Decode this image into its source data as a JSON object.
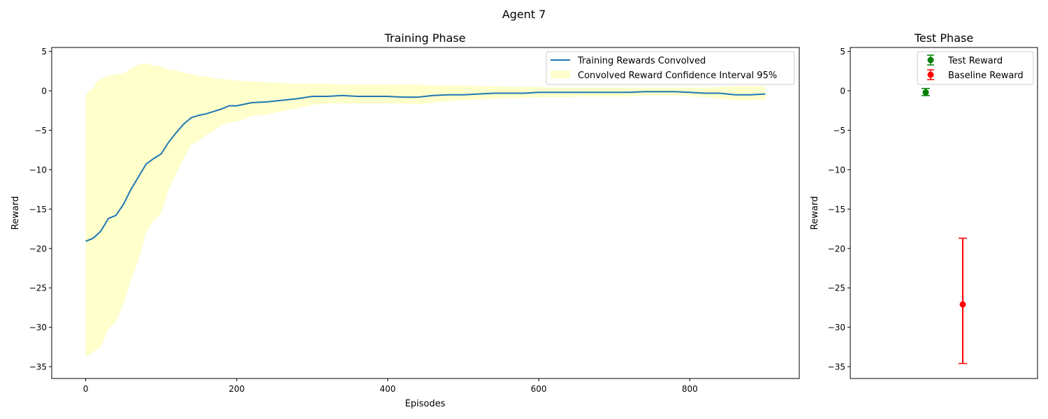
{
  "figure": {
    "suptitle": "Agent 7"
  },
  "chart_data": [
    {
      "type": "line",
      "title": "Training Phase",
      "xlabel": "Episodes",
      "ylabel": "Reward",
      "xlim": [
        -45,
        945
      ],
      "ylim": [
        -36.5,
        5.5
      ],
      "xticks": [
        0,
        200,
        400,
        600,
        800
      ],
      "yticks": [
        5,
        0,
        -5,
        -10,
        -15,
        -20,
        -25,
        -30,
        -35
      ],
      "grid": false,
      "legend_position": "top-right",
      "series": [
        {
          "name": "Training Rewards Convolved",
          "color": "#1f77b4",
          "x": [
            0,
            10,
            20,
            30,
            40,
            50,
            60,
            70,
            80,
            90,
            100,
            110,
            120,
            130,
            140,
            150,
            160,
            170,
            180,
            190,
            200,
            220,
            240,
            260,
            280,
            300,
            320,
            340,
            360,
            380,
            400,
            420,
            440,
            460,
            480,
            500,
            520,
            540,
            560,
            580,
            600,
            620,
            640,
            660,
            680,
            700,
            720,
            740,
            760,
            780,
            800,
            820,
            840,
            860,
            880,
            900
          ],
          "y": [
            -19.1,
            -18.7,
            -17.8,
            -16.2,
            -15.8,
            -14.4,
            -12.5,
            -10.9,
            -9.3,
            -8.6,
            -8.0,
            -6.5,
            -5.3,
            -4.2,
            -3.4,
            -3.1,
            -2.9,
            -2.6,
            -2.3,
            -1.9,
            -1.9,
            -1.5,
            -1.4,
            -1.2,
            -1.0,
            -0.7,
            -0.7,
            -0.6,
            -0.7,
            -0.7,
            -0.7,
            -0.8,
            -0.8,
            -0.6,
            -0.5,
            -0.5,
            -0.4,
            -0.3,
            -0.3,
            -0.3,
            -0.2,
            -0.2,
            -0.2,
            -0.2,
            -0.2,
            -0.2,
            -0.2,
            -0.1,
            -0.1,
            -0.1,
            -0.2,
            -0.3,
            -0.3,
            -0.5,
            -0.5,
            -0.4
          ]
        }
      ],
      "band": {
        "name": "Convolved Reward Confidence Interval 95%",
        "color": "#ffffcc",
        "x": [
          0,
          5,
          10,
          15,
          20,
          30,
          40,
          50,
          60,
          70,
          80,
          90,
          100,
          110,
          120,
          130,
          140,
          150,
          160,
          170,
          180,
          190,
          200,
          220,
          240,
          260,
          280,
          300,
          320,
          340,
          360,
          380,
          400,
          420,
          440,
          460,
          480,
          500,
          520,
          540,
          560,
          580,
          600,
          620,
          640,
          660,
          680,
          700,
          720,
          740,
          760,
          780,
          800,
          820,
          840,
          860,
          880,
          900
        ],
        "upper": [
          -0.5,
          0.0,
          0.3,
          1.2,
          1.5,
          1.9,
          2.1,
          2.2,
          2.8,
          3.3,
          3.5,
          3.2,
          3.1,
          2.7,
          2.6,
          2.3,
          2.1,
          1.9,
          1.8,
          1.6,
          1.5,
          1.4,
          1.3,
          1.2,
          1.1,
          1.0,
          0.9,
          0.9,
          0.9,
          0.8,
          0.8,
          0.8,
          0.8,
          0.8,
          0.8,
          0.7,
          0.7,
          0.7,
          0.6,
          0.6,
          0.5,
          0.5,
          0.5,
          0.4,
          0.4,
          0.4,
          0.4,
          0.4,
          0.4,
          0.4,
          0.4,
          0.4,
          0.4,
          0.4,
          0.5,
          0.6,
          0.6,
          0.6
        ],
        "lower": [
          -33.8,
          -33.5,
          -33.2,
          -32.8,
          -32.5,
          -30.2,
          -29.3,
          -27.0,
          -24.0,
          -21.5,
          -18.0,
          -16.5,
          -15.5,
          -12.5,
          -10.5,
          -8.5,
          -6.8,
          -6.3,
          -5.6,
          -5.0,
          -4.3,
          -4.0,
          -3.9,
          -3.2,
          -3.0,
          -2.6,
          -2.2,
          -1.8,
          -1.6,
          -1.6,
          -1.6,
          -1.6,
          -1.6,
          -1.6,
          -1.7,
          -1.5,
          -1.3,
          -1.2,
          -1.1,
          -1.0,
          -0.9,
          -0.9,
          -0.8,
          -0.8,
          -0.8,
          -0.7,
          -0.7,
          -0.7,
          -0.7,
          -0.6,
          -0.6,
          -0.6,
          -0.7,
          -0.8,
          -1.0,
          -1.2,
          -1.2,
          -1.1
        ]
      }
    },
    {
      "type": "scatter",
      "title": "Test Phase",
      "ylabel": "Reward",
      "ylim": [
        -36.5,
        5.5
      ],
      "yticks": [
        5,
        0,
        -5,
        -10,
        -15,
        -20,
        -25,
        -30,
        -35
      ],
      "grid": false,
      "legend_position": "top-right",
      "series": [
        {
          "name": "Test Reward",
          "color": "#008000",
          "value": -0.2,
          "err_low": -0.6,
          "err_high": 0.3
        },
        {
          "name": "Baseline Reward",
          "color": "#ff0000",
          "value": -27.1,
          "err_low": -34.6,
          "err_high": -18.7
        }
      ]
    }
  ]
}
